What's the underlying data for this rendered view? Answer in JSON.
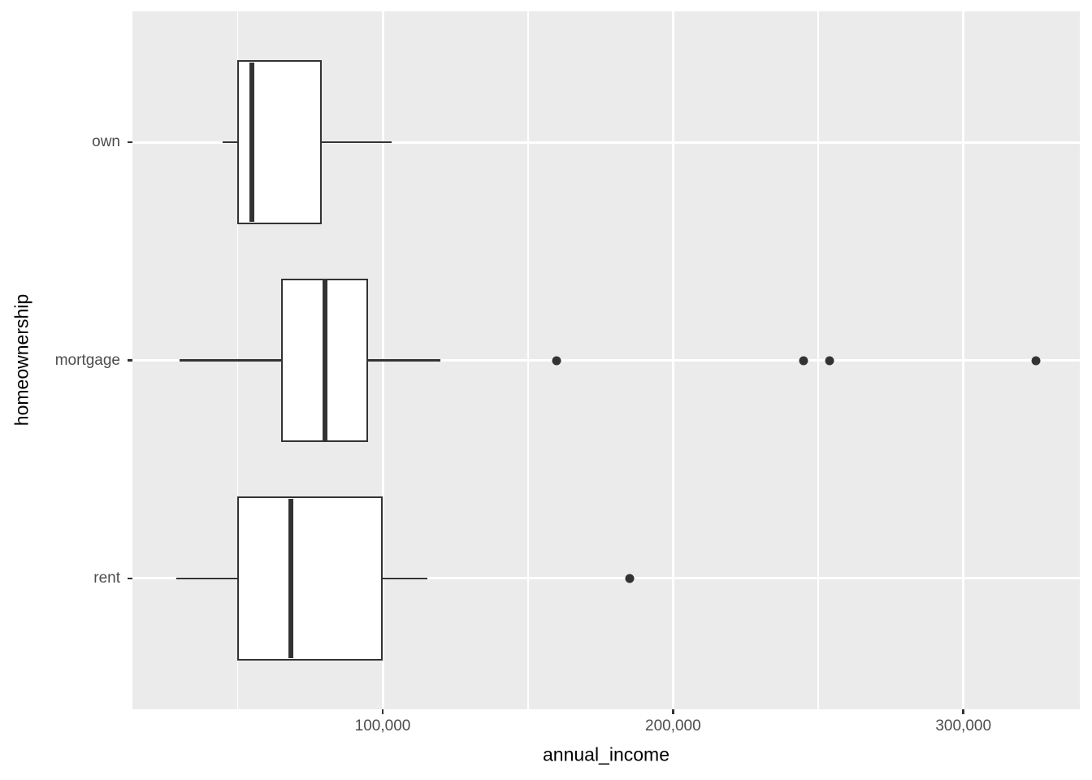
{
  "figure": {
    "background": "#FFFFFF",
    "panel_background": "#EBEBEB",
    "grid_color": "#FFFFFF",
    "box_stroke": "#333333",
    "box_fill": "#FFFFFF",
    "outlier_color": "#333333",
    "tick_mark_color": "#333333",
    "tick_label_color": "#4D4D4D",
    "axis_title_color": "#000000"
  },
  "chart_data": {
    "type": "boxplot",
    "orientation": "horizontal",
    "title": "",
    "xlabel": "annual_income",
    "ylabel": "homeownership",
    "categories": [
      "own",
      "mortgage",
      "rent"
    ],
    "x_domain": [
      13800,
      340100
    ],
    "x_major_ticks": [
      {
        "value": 100000,
        "label": "100,000"
      },
      {
        "value": 200000,
        "label": "200,000"
      },
      {
        "value": 300000,
        "label": "300,000"
      }
    ],
    "x_minor_ticks": [
      50000,
      150000,
      250000
    ],
    "grid": {
      "major": true,
      "minor_x": true,
      "minor_y": false
    },
    "legend": "none",
    "series": [
      {
        "category": "own",
        "whisker_low": 45000,
        "q1": 50000,
        "median": 55000,
        "q3": 79000,
        "whisker_high": 103000,
        "outliers": []
      },
      {
        "category": "mortgage",
        "whisker_low": 30000,
        "q1": 65000,
        "median": 80000,
        "q3": 95000,
        "whisker_high": 120000,
        "outliers": [
          160000,
          245000,
          254000,
          325000
        ]
      },
      {
        "category": "rent",
        "whisker_low": 29000,
        "q1": 50000,
        "median": 68500,
        "q3": 100000,
        "whisker_high": 115500,
        "outliers": [
          185000
        ]
      }
    ]
  }
}
